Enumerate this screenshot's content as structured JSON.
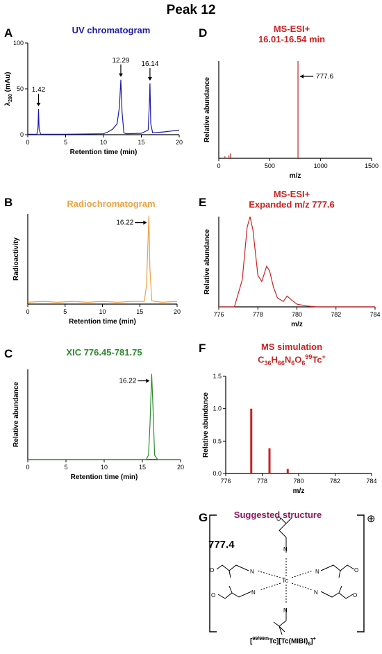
{
  "figure_title": "Peak 12",
  "colors": {
    "uv": "#1a1aa6",
    "radio": "#f0a040",
    "xic": "#2e8b2e",
    "ms": "#cc2222",
    "structure": "#8B1A5E"
  },
  "panels": {
    "A": {
      "letter": "A",
      "title": "UV chromatogram",
      "ylabel_main": "λ",
      "ylabel_sub": "280",
      "ylabel_rest": " (mAu)"
    },
    "B": {
      "letter": "B",
      "title": "Radiochromatogram"
    },
    "C": {
      "letter": "C",
      "title": "XIC 776.45-781.75"
    },
    "D": {
      "letter": "D",
      "title_line1": "MS-ESI+",
      "title_line2": "16.01-16.54 min"
    },
    "E": {
      "letter": "E",
      "title_line1": "MS-ESI+",
      "title_line2": "Expanded m/z 777.6"
    },
    "F": {
      "letter": "F",
      "title_line1": "MS simulation"
    },
    "G": {
      "letter": "G",
      "title": "Suggested structure",
      "mass": "777.4",
      "charge": "⊕",
      "caption": "[99/99mTc][Tc(MIBI)6]+"
    }
  },
  "chart_data": [
    {
      "id": "A",
      "type": "line",
      "title": "UV chromatogram",
      "xlabel": "Retention time (min)",
      "ylabel": "λ280 (mAu)",
      "xlim": [
        0,
        20
      ],
      "ylim": [
        0,
        100
      ],
      "xticks": [
        0,
        5,
        10,
        15,
        20
      ],
      "yticks": [
        0,
        50,
        100
      ],
      "x": [
        0,
        1.2,
        1.35,
        1.42,
        1.5,
        1.7,
        5,
        10,
        10.6,
        11.2,
        11.8,
        12.1,
        12.29,
        12.45,
        12.7,
        13,
        15,
        15.9,
        16.05,
        16.14,
        16.25,
        16.5,
        18,
        20
      ],
      "y": [
        0.5,
        0.5,
        8,
        28,
        6,
        0.5,
        0.5,
        1,
        3,
        6,
        12,
        30,
        60,
        25,
        2,
        1,
        1.5,
        5,
        30,
        56,
        12,
        2,
        3,
        5
      ],
      "annotations": [
        {
          "x": 1.42,
          "label": "1.42"
        },
        {
          "x": 12.29,
          "label": "12.29"
        },
        {
          "x": 16.14,
          "label": "16.14"
        }
      ]
    },
    {
      "id": "B",
      "type": "line",
      "title": "Radiochromatogram",
      "xlabel": "Retention time (min)",
      "ylabel": "Radioactivity",
      "xlim": [
        0,
        20
      ],
      "ylim": [
        0,
        100
      ],
      "xticks": [
        0,
        5,
        10,
        15,
        20
      ],
      "x": [
        0,
        2,
        4,
        6,
        8,
        10,
        12,
        14,
        15.6,
        15.9,
        16.1,
        16.22,
        16.35,
        16.6,
        17,
        18,
        20
      ],
      "y": [
        2,
        3,
        2,
        3,
        2,
        3,
        2,
        3,
        3,
        20,
        70,
        98,
        40,
        4,
        3,
        2,
        3
      ],
      "annotations": [
        {
          "x": 16.22,
          "label": "16.22"
        }
      ]
    },
    {
      "id": "C",
      "type": "line",
      "title": "XIC 776.45-781.75",
      "xlabel": "Retention time (min)",
      "ylabel": "Relative abundance",
      "xlim": [
        0,
        20
      ],
      "ylim": [
        0,
        100
      ],
      "xticks": [
        0,
        5,
        10,
        15,
        20
      ],
      "x": [
        0,
        15.5,
        15.8,
        16.0,
        16.22,
        16.4,
        16.6,
        17,
        20
      ],
      "y": [
        0,
        0,
        5,
        40,
        95,
        55,
        5,
        0,
        0
      ],
      "annotations": [
        {
          "x": 16.22,
          "label": "16.22"
        }
      ]
    },
    {
      "id": "D",
      "type": "bar",
      "title": "MS-ESI+ 16.01-16.54 min",
      "xlabel": "m/z",
      "ylabel": "Relative abundance",
      "xlim": [
        0,
        1500
      ],
      "ylim": [
        0,
        100
      ],
      "xticks": [
        0,
        500,
        1000,
        1500
      ],
      "x": [
        60,
        100,
        115,
        777.6
      ],
      "y": [
        2,
        3,
        5,
        100
      ],
      "annotations": [
        {
          "x": 777.6,
          "label": "777.6"
        }
      ]
    },
    {
      "id": "E",
      "type": "line",
      "title": "MS-ESI+ Expanded m/z 777.6",
      "xlabel": "m/z",
      "ylabel": "Relative abundance",
      "xlim": [
        776,
        784
      ],
      "ylim": [
        0,
        100
      ],
      "xticks": [
        776,
        778,
        780,
        782,
        784
      ],
      "x": [
        776,
        776.8,
        777.2,
        777.45,
        777.6,
        777.75,
        778.0,
        778.2,
        778.45,
        778.6,
        778.8,
        779.0,
        779.3,
        779.5,
        779.7,
        780.0,
        780.5,
        781.0,
        784
      ],
      "y": [
        0,
        0,
        30,
        88,
        100,
        85,
        35,
        28,
        45,
        40,
        22,
        10,
        6,
        12,
        8,
        3,
        1,
        0,
        0
      ]
    },
    {
      "id": "F",
      "type": "bar",
      "title": "MS simulation",
      "xlabel": "m/z",
      "ylabel": "Relative abundance",
      "xlim": [
        776,
        784
      ],
      "ylim": [
        0,
        1.5
      ],
      "xticks": [
        776,
        778,
        780,
        782,
        784
      ],
      "yticks": [
        0.0,
        0.5,
        1.0,
        1.5
      ],
      "x": [
        777.4,
        778.4,
        779.4
      ],
      "y": [
        1.0,
        0.39,
        0.07
      ]
    }
  ]
}
